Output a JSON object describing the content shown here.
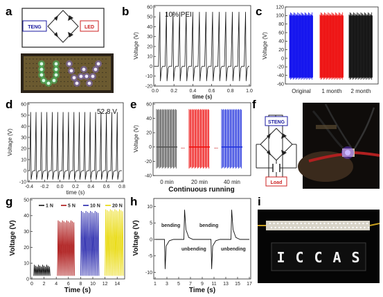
{
  "panels": {
    "a": {
      "label": "a",
      "teng_label": "TENG",
      "led_label": "LED"
    },
    "b": {
      "label": "b",
      "annotation": "10% PEI",
      "xlabel": "time (s)",
      "ylabel": "Voltage (V)",
      "xticks": [
        "0.0",
        "0.2",
        "0.4",
        "0.6",
        "0.8",
        "1.0"
      ],
      "yticks": [
        "-20",
        "-10",
        "0",
        "10",
        "20",
        "30",
        "40",
        "50",
        "60"
      ]
    },
    "c": {
      "label": "c",
      "ylabel": "Voltage (V)",
      "categories": [
        "Original",
        "1 month",
        "2 month"
      ],
      "colors": [
        "#1010ee",
        "#ee1010",
        "#111111"
      ],
      "yticks": [
        "-60",
        "-40",
        "-20",
        "0",
        "20",
        "40",
        "60",
        "80",
        "100",
        "120"
      ]
    },
    "d": {
      "label": "d",
      "annotation": "52.8 V",
      "xlabel": "time (s)",
      "ylabel": "Voltage (V)",
      "xticks": [
        "-0.4",
        "-0.2",
        "0.0",
        "0.2",
        "0.4",
        "0.6",
        "0.8"
      ],
      "yticks": [
        "-10",
        "0",
        "10",
        "20",
        "30",
        "40",
        "50",
        "60"
      ]
    },
    "e": {
      "label": "e",
      "ylabel": "Voltage (V)",
      "xlabel": "Continuous running",
      "categories": [
        "0 min",
        "20 min",
        "40 min"
      ],
      "dots": "...",
      "colors": [
        "#555555",
        "#ee1010",
        "#2233dd"
      ],
      "yticks": [
        "-40",
        "-20",
        "0",
        "20",
        "40",
        "60"
      ]
    },
    "f": {
      "label": "f",
      "steng_label": "STENG",
      "load_label": "Load"
    },
    "g": {
      "label": "g",
      "xlabel": "Time (s)",
      "ylabel": "Voltage (V)",
      "xticks": [
        "0",
        "2",
        "4",
        "6",
        "8",
        "10",
        "12",
        "14"
      ],
      "yticks": [
        "0",
        "10",
        "20",
        "30",
        "40",
        "50"
      ],
      "legend": [
        "1 N",
        "5 N",
        "10 N",
        "20 N"
      ],
      "colors": [
        "#111111",
        "#aa1111",
        "#2222aa",
        "#e8d800"
      ]
    },
    "h": {
      "label": "h",
      "xlabel": "Time (s)",
      "ylabel": "Voltage (V)",
      "xticks": [
        "1",
        "3",
        "5",
        "7",
        "9",
        "11",
        "13",
        "15",
        "17"
      ],
      "yticks": [
        "-10",
        "-5",
        "0",
        "5",
        "10"
      ],
      "annotations": [
        "bending",
        "unbending",
        "bending",
        "unbending"
      ]
    },
    "i": {
      "label": "i",
      "led_text": [
        "I",
        "C",
        "C",
        "A",
        "S"
      ]
    }
  },
  "chart_data": [
    {
      "type": "line",
      "panel": "b",
      "x_range": [
        0,
        1
      ],
      "ylim": [
        -20,
        60
      ],
      "title": "10% PEI",
      "xlabel": "time (s)",
      "ylabel": "Voltage (V)",
      "series": [
        {
          "peak_times": [
            0.05,
            0.12,
            0.19,
            0.26,
            0.33,
            0.4,
            0.47,
            0.54,
            0.61,
            0.68,
            0.75,
            0.82,
            0.89,
            0.96
          ],
          "peak_value": 55,
          "min_value": -15
        }
      ]
    },
    {
      "type": "area",
      "panel": "c",
      "ylim": [
        -60,
        120
      ],
      "ylabel": "Voltage (V)",
      "categories": [
        "Original",
        "1 month",
        "2 month"
      ],
      "series": [
        {
          "name": "Original",
          "max": 100,
          "min": -45
        },
        {
          "name": "1 month",
          "max": 100,
          "min": -45
        },
        {
          "name": "2 month",
          "max": 100,
          "min": -45
        }
      ]
    },
    {
      "type": "line",
      "panel": "d",
      "x_range": [
        -0.4,
        0.8
      ],
      "ylim": [
        -10,
        60
      ],
      "title": "52.8 V",
      "xlabel": "time (s)",
      "ylabel": "Voltage (V)",
      "series": [
        {
          "peak_times": [
            -0.38,
            -0.31,
            -0.24,
            -0.17,
            -0.1,
            -0.03,
            0.04,
            0.11,
            0.18,
            0.25,
            0.32,
            0.39,
            0.46,
            0.53,
            0.6,
            0.67,
            0.74
          ],
          "peak_value": 52.8,
          "min_value": -8
        }
      ]
    },
    {
      "type": "area",
      "panel": "e",
      "ylim": [
        -40,
        60
      ],
      "xlabel": "Continuous running",
      "ylabel": "Voltage (V)",
      "categories": [
        "0 min",
        "20 min",
        "40 min"
      ],
      "series": [
        {
          "name": "0 min",
          "max": 53,
          "min": -30
        },
        {
          "name": "20 min",
          "max": 53,
          "min": -30
        },
        {
          "name": "40 min",
          "max": 53,
          "min": -30
        }
      ]
    },
    {
      "type": "line",
      "panel": "g",
      "x_range": [
        0,
        15
      ],
      "ylim": [
        0,
        50
      ],
      "xlabel": "Time (s)",
      "ylabel": "Voltage (V)",
      "series": [
        {
          "name": "1 N",
          "x_start": 0.3,
          "x_end": 3,
          "peak": 9
        },
        {
          "name": "5 N",
          "x_start": 4.2,
          "x_end": 7,
          "peak": 37
        },
        {
          "name": "10 N",
          "x_start": 8,
          "x_end": 11,
          "peak": 43
        },
        {
          "name": "20 N",
          "x_start": 12,
          "x_end": 15,
          "peak": 44
        }
      ]
    },
    {
      "type": "line",
      "panel": "h",
      "x_range": [
        1,
        17
      ],
      "ylim": [
        -12,
        12
      ],
      "xlabel": "Time (s)",
      "ylabel": "Voltage (V)",
      "series": [
        {
          "events": [
            {
              "x": 2.7,
              "y": -9,
              "label": "bending"
            },
            {
              "x": 6,
              "y": 9,
              "label": "unbending"
            },
            {
              "x": 10.6,
              "y": -9,
              "label": "bending"
            },
            {
              "x": 14,
              "y": 9,
              "label": "unbending"
            }
          ]
        }
      ]
    }
  ]
}
